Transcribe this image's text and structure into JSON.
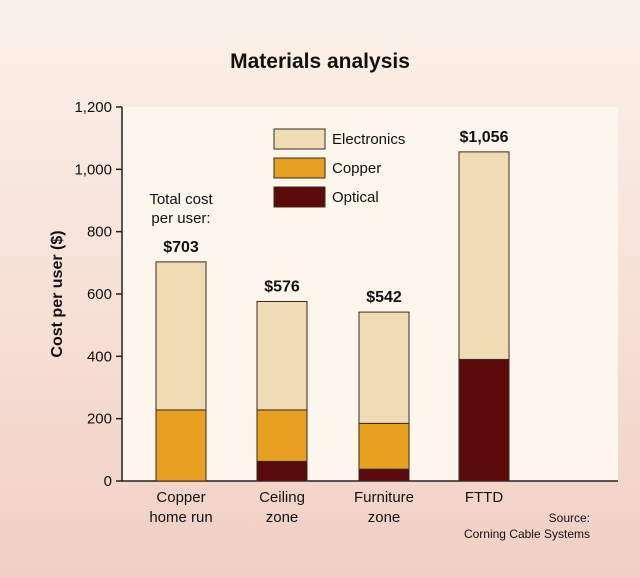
{
  "chart_data": {
    "type": "bar",
    "stacked": true,
    "title": "Materials analysis",
    "ylabel": "Cost per user ($)",
    "xlabel": "",
    "ylim": [
      0,
      1200
    ],
    "yticks": [
      "0",
      "200",
      "400",
      "600",
      "800",
      "1,000",
      "1,200"
    ],
    "categories": [
      [
        "Copper",
        "home run"
      ],
      [
        "Ceiling",
        "zone"
      ],
      [
        "Furniture",
        "zone"
      ],
      [
        "FTTD"
      ]
    ],
    "series": [
      {
        "name": "Optical",
        "color": "#5a0a0a",
        "values": [
          0,
          63,
          38,
          390
        ]
      },
      {
        "name": "Copper",
        "color": "#e8a020",
        "values": [
          228,
          165,
          147,
          0
        ]
      },
      {
        "name": "Electronics",
        "color": "#f0dcb4",
        "values": [
          475,
          348,
          357,
          666
        ]
      }
    ],
    "totals": [
      "$703",
      "$576",
      "$542",
      "$1,056"
    ],
    "total_annotation": [
      "Total cost",
      "per user:"
    ],
    "legend": [
      {
        "label": "Electronics",
        "color": "#f0dcb4"
      },
      {
        "label": "Copper",
        "color": "#e8a020"
      },
      {
        "label": "Optical",
        "color": "#5a0a0a"
      }
    ],
    "source": [
      "Source:",
      "Corning Cable Systems"
    ],
    "plot_background": "#fdf6ec",
    "bar_outline": "#3a2a20"
  }
}
